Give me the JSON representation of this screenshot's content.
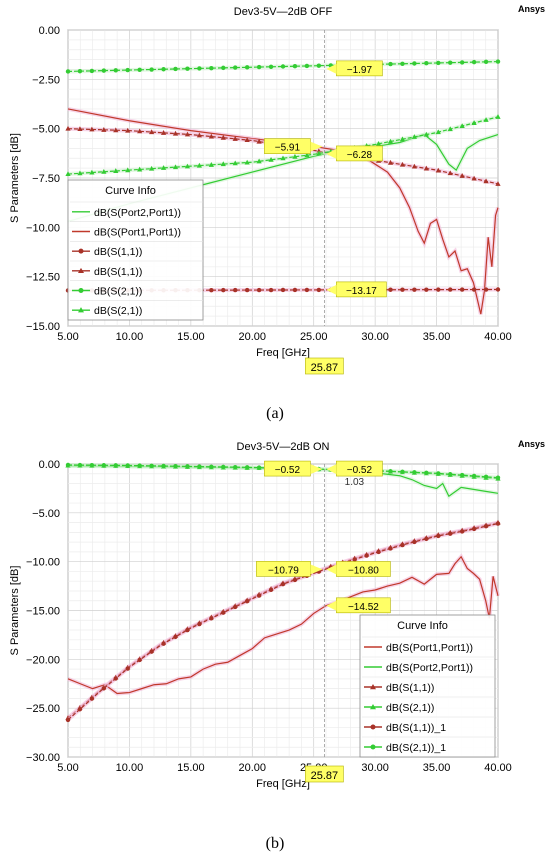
{
  "chart_data": [
    {
      "type": "line",
      "title": "Dev3-5V—2dB OFF",
      "brand": "Ansys",
      "xlabel": "Freq [GHz]",
      "ylabel": "S Parameters [dB]",
      "xlim": [
        5,
        40
      ],
      "ylim": [
        -15,
        0
      ],
      "xticks": [
        "5.00",
        "10.00",
        "15.00",
        "20.00",
        "25.00",
        "30.00",
        "35.00",
        "40.00"
      ],
      "yticks": [
        "0.00",
        "-2.50",
        "-5.00",
        "-7.50",
        "-10.00",
        "-12.50",
        "-15.00"
      ],
      "grid": true,
      "legend_title": "Curve Info",
      "legend_position": "left",
      "marker_x_label": "25.87",
      "marker_x": 25.87,
      "series": [
        {
          "name": "dB(S(Port2,Port1))",
          "color": "#33cc33",
          "marker": "none",
          "x": [
            5,
            10,
            15,
            20,
            25,
            28,
            30,
            32,
            34,
            35,
            36,
            36.6,
            37.5,
            38.5,
            40
          ],
          "y": [
            -9.7,
            -8.8,
            -8.0,
            -7.2,
            -6.4,
            -6.0,
            -5.9,
            -5.7,
            -5.3,
            -5.8,
            -6.8,
            -7.1,
            -6.0,
            -5.6,
            -5.3
          ]
        },
        {
          "name": "dB(S(Port1,Port1))",
          "color": "#c0392b",
          "marker": "none",
          "x": [
            5,
            10,
            15,
            20,
            25,
            27,
            28,
            29,
            30,
            31,
            32,
            32.8,
            33.5,
            34,
            34.5,
            35,
            35.5,
            36,
            36.5,
            37,
            37.5,
            38,
            38.3,
            38.6,
            38.9,
            39.2,
            39.5,
            39.8,
            40
          ],
          "y": [
            -4.0,
            -4.6,
            -5.1,
            -5.5,
            -5.9,
            -6.1,
            -6.2,
            -6.4,
            -6.8,
            -7.2,
            -8.0,
            -9.0,
            -10.2,
            -10.8,
            -9.8,
            -9.6,
            -10.6,
            -11.5,
            -11.2,
            -12.2,
            -12.1,
            -12.8,
            -13.6,
            -14.4,
            -13.2,
            -10.5,
            -12.0,
            -9.4,
            -9.0
          ]
        },
        {
          "name": "dB(S(1,1))",
          "color": "#a83228",
          "marker": "circle",
          "x": [
            5,
            40
          ],
          "y": [
            -13.2,
            -13.15
          ]
        },
        {
          "name": "dB(S(1,1))",
          "color": "#a83228",
          "marker": "triangle",
          "x": [
            5,
            10,
            15,
            20,
            25,
            30,
            35,
            40
          ],
          "y": [
            -5.0,
            -5.1,
            -5.3,
            -5.6,
            -6.1,
            -6.6,
            -7.1,
            -7.8
          ]
        },
        {
          "name": "dB(S(2,1))",
          "color": "#33cc33",
          "marker": "circle",
          "x": [
            5,
            40
          ],
          "y": [
            -2.1,
            -1.6
          ]
        },
        {
          "name": "dB(S(2,1))",
          "color": "#33cc33",
          "marker": "triangle",
          "x": [
            5,
            10,
            15,
            20,
            25,
            30,
            35,
            40
          ],
          "y": [
            -7.3,
            -7.1,
            -6.9,
            -6.7,
            -6.3,
            -5.8,
            -5.2,
            -4.4
          ]
        }
      ],
      "markers": [
        {
          "label": "−1.97",
          "x": 25.87,
          "y": -1.97
        },
        {
          "label": "−5.91",
          "x": 25.87,
          "y": -5.91
        },
        {
          "label": "−6.28",
          "x": 25.87,
          "y": -6.28
        },
        {
          "label": "−13.17",
          "x": 25.87,
          "y": -13.17
        }
      ]
    },
    {
      "type": "line",
      "title": "Dev3-5V—2dB ON",
      "brand": "Ansys",
      "xlabel": "Freq [GHz]",
      "ylabel": "S Parameters [dB]",
      "xlim": [
        5,
        40
      ],
      "ylim": [
        -30,
        0
      ],
      "xticks": [
        "5.00",
        "10.00",
        "15.00",
        "20.00",
        "25.00",
        "30.00",
        "35.00",
        "40.00"
      ],
      "yticks": [
        "0.00",
        "-5.00",
        "-10.00",
        "-15.00",
        "-20.00",
        "-25.00",
        "-30.00"
      ],
      "grid": true,
      "legend_title": "Curve Info",
      "legend_position": "bottom-right",
      "marker_x_label": "25.87",
      "marker_x": 25.87,
      "series": [
        {
          "name": "dB(S(Port1,Port1))",
          "color": "#c0392b",
          "marker": "none",
          "x": [
            5,
            6,
            7,
            8,
            9,
            10,
            11,
            12,
            13,
            14,
            15,
            16,
            17,
            18,
            19,
            20,
            21,
            22,
            23,
            24,
            25,
            26,
            27,
            28,
            29,
            30,
            31,
            32,
            33,
            34,
            35,
            36,
            36.5,
            37,
            37.5,
            38,
            38.5,
            39,
            39.3,
            39.6,
            40
          ],
          "y": [
            -22,
            -22.5,
            -23,
            -22.6,
            -23.5,
            -23.4,
            -23,
            -22.6,
            -22.5,
            -22,
            -21.8,
            -21,
            -20.5,
            -20.3,
            -19.6,
            -18.9,
            -17.8,
            -17.4,
            -17.0,
            -16.4,
            -15.3,
            -14.5,
            -14.1,
            -13.6,
            -13.1,
            -12.9,
            -12.5,
            -12.2,
            -11.6,
            -12.3,
            -11.3,
            -11.2,
            -10.2,
            -9.5,
            -10.7,
            -11.2,
            -11.8,
            -14.0,
            -15.8,
            -11.5,
            -13.5
          ]
        },
        {
          "name": "dB(S(Port2,Port1))",
          "color": "#33cc33",
          "marker": "none",
          "x": [
            5,
            10,
            15,
            20,
            25,
            28,
            30,
            32,
            33,
            34,
            35,
            35.5,
            36,
            37,
            38,
            39,
            40
          ],
          "y": [
            -0.2,
            -0.25,
            -0.3,
            -0.4,
            -0.5,
            -0.7,
            -0.9,
            -1.2,
            -1.6,
            -2.2,
            -2.5,
            -2.0,
            -3.3,
            -2.4,
            -2.6,
            -2.8,
            -3.0
          ]
        },
        {
          "name": "dB(S(1,1))",
          "color": "#a83228",
          "marker": "triangle",
          "x": [
            5,
            7.5,
            10,
            12.5,
            15,
            17.5,
            20,
            22.5,
            25,
            27.5,
            30,
            32.5,
            35,
            37.5,
            40
          ],
          "y": [
            -26.0,
            -23.3,
            -20.7,
            -18.5,
            -16.7,
            -15.2,
            -13.7,
            -12.2,
            -11.1,
            -10.0,
            -9.0,
            -8.1,
            -7.3,
            -6.7,
            -6.0
          ]
        },
        {
          "name": "dB(S(2,1))",
          "color": "#33cc33",
          "marker": "triangle",
          "x": [
            5,
            10,
            15,
            20,
            25,
            30,
            35,
            40
          ],
          "y": [
            -0.15,
            -0.2,
            -0.3,
            -0.4,
            -0.52,
            -0.7,
            -1.0,
            -1.5
          ]
        },
        {
          "name": "dB(S(1,1))_1",
          "color": "#a83228",
          "marker": "circle",
          "x": [
            5,
            7.5,
            10,
            12.5,
            15,
            17.5,
            20,
            22.5,
            25,
            27.5,
            30,
            32.5,
            35,
            37.5,
            40
          ],
          "y": [
            -26.2,
            -23.4,
            -20.8,
            -18.6,
            -16.8,
            -15.3,
            -13.8,
            -12.3,
            -11.2,
            -10.1,
            -9.1,
            -8.2,
            -7.4,
            -6.8,
            -6.1
          ]
        },
        {
          "name": "dB(S(2,1))_1",
          "color": "#33cc33",
          "marker": "circle",
          "x": [
            5,
            10,
            15,
            20,
            25,
            30,
            35,
            40
          ],
          "y": [
            -0.1,
            -0.15,
            -0.25,
            -0.35,
            -0.52,
            -0.68,
            -0.95,
            -1.4
          ]
        }
      ],
      "markers": [
        {
          "label": "−0.52",
          "x": 25.87,
          "y": -0.52,
          "side": "left"
        },
        {
          "label": "−0.52",
          "x": 25.87,
          "y": -0.52,
          "side": "right"
        },
        {
          "label": "1.03",
          "x": 25.87,
          "y": -0.9,
          "side": "right-under"
        },
        {
          "label": "−10.79",
          "x": 25.87,
          "y": -10.79,
          "side": "left"
        },
        {
          "label": "−10.80",
          "x": 25.87,
          "y": -10.8,
          "side": "right"
        },
        {
          "label": "−14.52",
          "x": 25.87,
          "y": -14.52,
          "side": "right"
        }
      ]
    }
  ],
  "captions": {
    "a": "(a)",
    "b": "(b)"
  }
}
